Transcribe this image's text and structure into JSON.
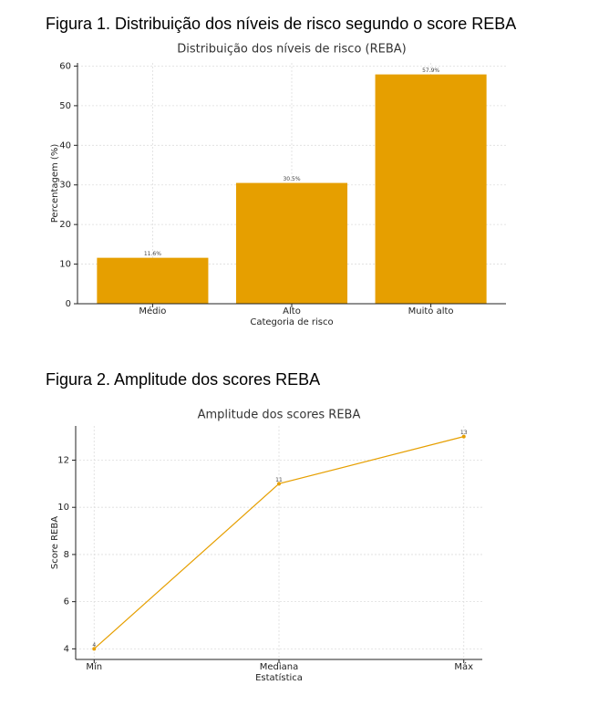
{
  "captions": [
    "Figura 1. Distribuição dos níveis de risco segundo o score REBA",
    "Figura 2. Amplitude dos scores REBA"
  ],
  "chart_data": [
    {
      "type": "bar",
      "title": "Distribuição dos níveis de risco (REBA)",
      "xlabel": "Categoria de risco",
      "ylabel": "Percentagem (%)",
      "categories": [
        "Médio",
        "Alto",
        "Muito alto"
      ],
      "values": [
        11.6,
        30.5,
        57.9
      ],
      "value_labels": [
        "11.6%",
        "30.5%",
        "57.9%"
      ],
      "color": "#e69f00",
      "ylim": [
        0,
        60.8
      ],
      "yticks": [
        0,
        10,
        20,
        30,
        40,
        50,
        60
      ],
      "grid": true
    },
    {
      "type": "line",
      "title": "Amplitude dos scores REBA",
      "xlabel": "Estatística",
      "ylabel": "Score REBA",
      "categories": [
        "Mín",
        "Mediana",
        "Máx"
      ],
      "values": [
        4,
        11,
        13
      ],
      "color": "#e69f00",
      "ylim": [
        3.55,
        13.45
      ],
      "yticks": [
        4,
        6,
        8,
        10,
        12
      ],
      "grid": true
    }
  ]
}
